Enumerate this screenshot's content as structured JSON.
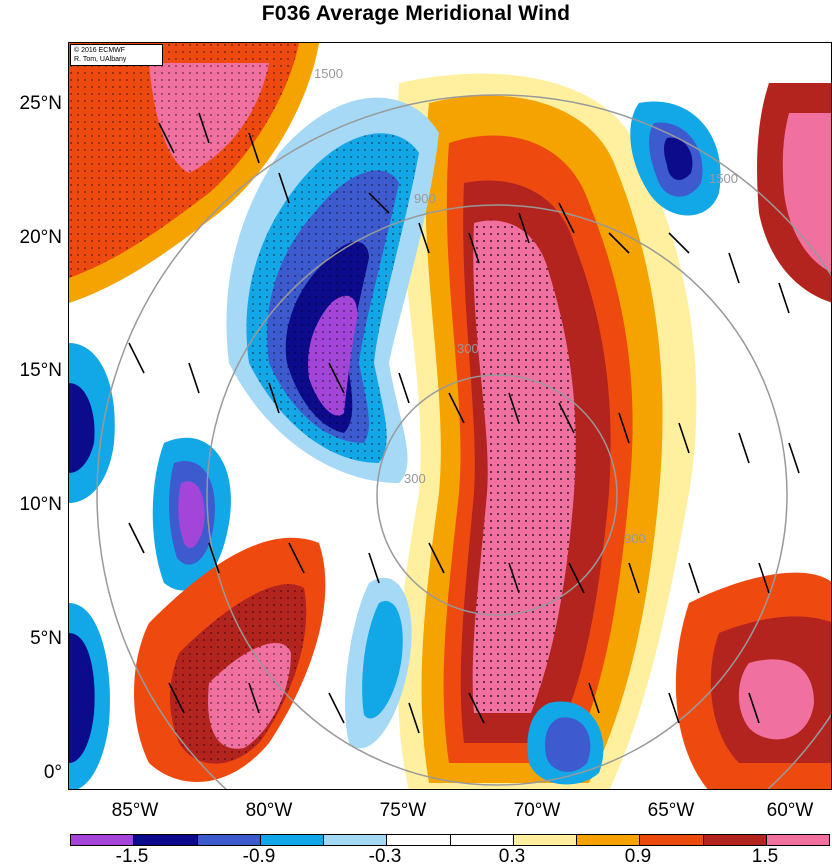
{
  "title": "F036 Average Meridional Wind",
  "credit": {
    "line1": "© 2016 ECMWF",
    "line2": "R. Tom, UAlbany"
  },
  "lat_labels": [
    "25°N",
    "20°N",
    "15°N",
    "10°N",
    "5°N",
    "0°"
  ],
  "lon_labels": [
    "85°W",
    "80°W",
    "75°W",
    "70°W",
    "65°W",
    "60°W"
  ],
  "colorbar": {
    "colors": [
      "#a245d8",
      "#0b0b8c",
      "#3d5bcf",
      "#12a8e8",
      "#a6d9f5",
      "#ffffff",
      "#ffffff",
      "#fff0a0",
      "#f5a300",
      "#ee4a10",
      "#b3241f",
      "#f070a0"
    ],
    "labels": [
      "-1.5",
      "-0.9",
      "-0.3",
      "0.3",
      "0.9",
      "1.5"
    ]
  },
  "range_ring_labels": [
    "300",
    "900",
    "1500"
  ]
}
